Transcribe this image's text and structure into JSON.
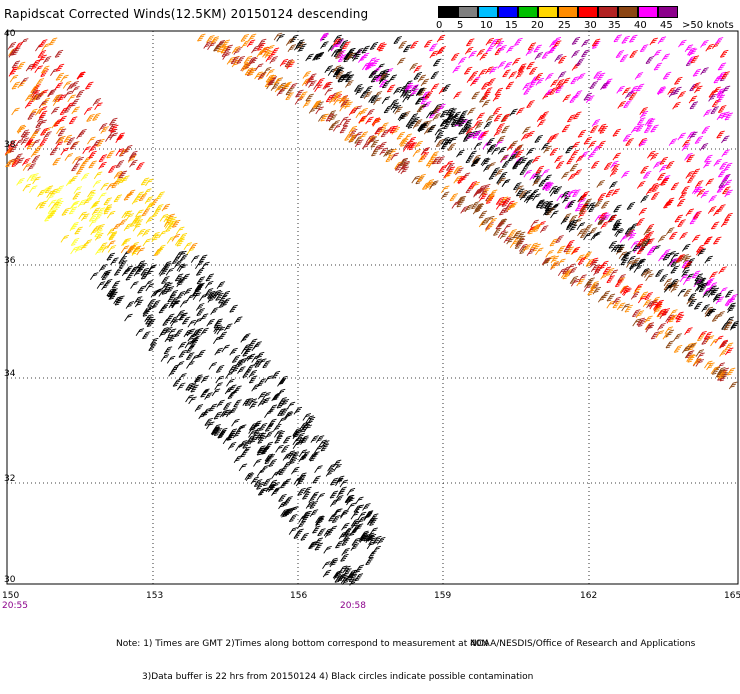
{
  "title": "Rapidscat Corrected Winds(12.5KM) 20150124 descending",
  "colorbar": {
    "colors": [
      "#000000",
      "#7f7f7f",
      "#00bfff",
      "#0000ff",
      "#00c000",
      "#ffd700",
      "#ff8c00",
      "#ff0000",
      "#b22222",
      "#8b4513",
      "#ff00ff",
      "#8b008b"
    ],
    "labels": [
      "0",
      "5",
      "10",
      "15",
      "20",
      "25",
      "30",
      "35",
      "40",
      "45",
      ">50 knots"
    ]
  },
  "map": {
    "lat_ticks": [
      "40",
      "38",
      "36",
      "34",
      "32",
      "30"
    ],
    "lon_ticks": [
      "150",
      "153",
      "156",
      "159",
      "162",
      "165"
    ],
    "times": [
      "20:55",
      "20:58"
    ]
  },
  "notes": {
    "line1": "Note: 1) Times are GMT 2)Times along bottom correspond to measurement at 40N",
    "line2": "3)Data buffer is 22 hrs from 20150124 4) Black circles indicate possible contamination",
    "credit": "NOAA/NESDIS/Office of Research and Applications"
  }
}
